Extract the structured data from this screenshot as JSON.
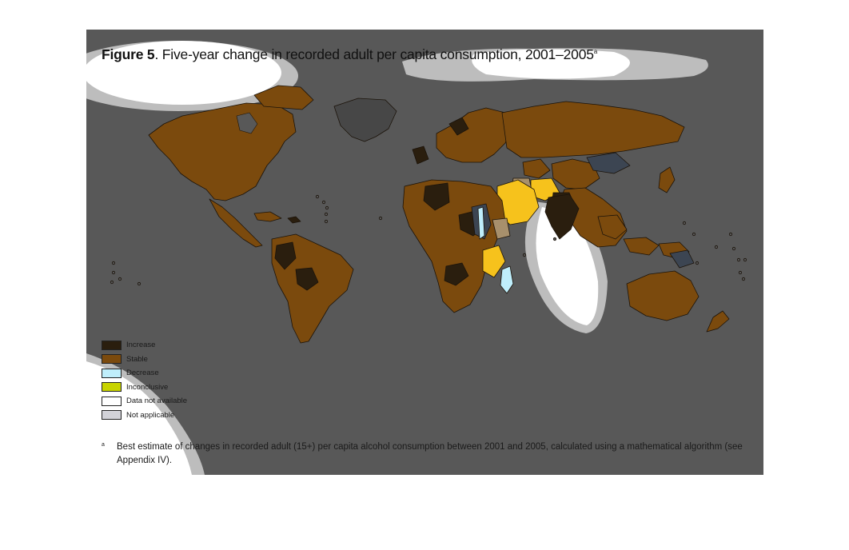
{
  "figure": {
    "label": "Figure 5",
    "title": ". Five-year change in recorded adult per capita consumption, 2001–2005",
    "superscript": "a"
  },
  "legend": [
    {
      "label": "Increase",
      "color": "#2a1e0e"
    },
    {
      "label": "Stable",
      "color": "#7b4a0d"
    },
    {
      "label": "Decrease",
      "color": "#bfeefb"
    },
    {
      "label": "Inconclusive",
      "color": "#c8d400"
    },
    {
      "label": "Data not available",
      "color": "#ffffff"
    },
    {
      "label": "Not applicable",
      "color": "#d2d2d8"
    }
  ],
  "footnote": {
    "mark": "a",
    "text": "Best estimate of changes in recorded adult (15+) per capita alcohol consumption between 2001 and 2005, calculated using a mathematical algorithm (see Appendix IV)."
  },
  "colors": {
    "panel": "#585858",
    "greenland": "#474747",
    "ocean_glare": "#ffffff",
    "highlight": "#f6c21c"
  }
}
